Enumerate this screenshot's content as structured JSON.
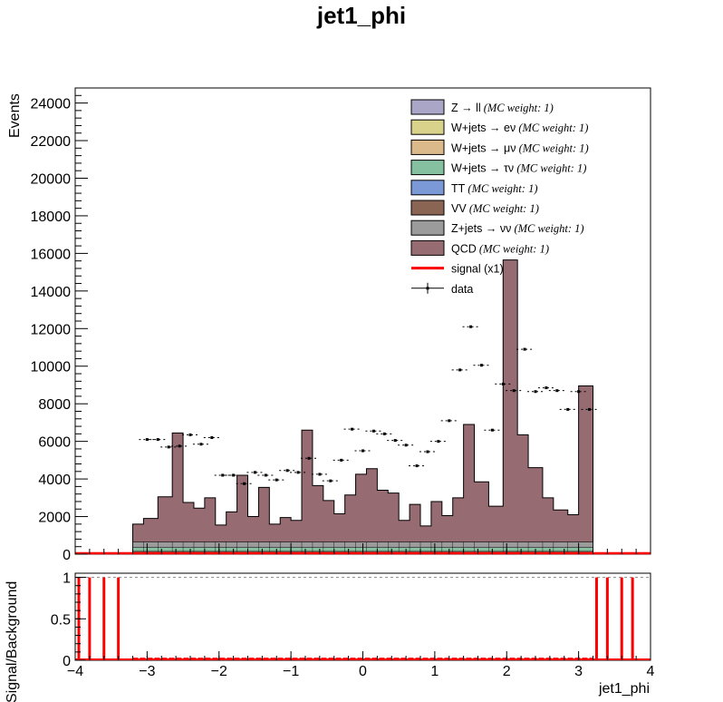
{
  "chart_data": [
    {
      "type": "bar",
      "title": "jet1_phi",
      "ylabel": "Events",
      "xlabel": "",
      "xlim": [
        -4,
        4
      ],
      "ylim": [
        0,
        24800
      ],
      "yticks": [
        "0",
        "2000",
        "4000",
        "6000",
        "8000",
        "10000",
        "12000",
        "14000",
        "16000",
        "18000",
        "20000",
        "22000",
        "24000"
      ],
      "bin_edges": [
        -3.2,
        -3.0,
        -2.8,
        -2.6,
        -2.4,
        -2.2,
        -2.0,
        -1.8,
        -1.6,
        -1.4,
        -1.2,
        -1.0,
        -0.8,
        -0.6,
        -0.4,
        -0.2,
        0.0,
        0.2,
        0.4,
        0.6,
        0.8,
        1.0,
        1.2,
        1.4,
        1.6,
        1.8,
        2.0,
        2.2,
        2.4,
        2.6,
        2.8,
        3.0,
        3.2
      ],
      "stack_total": [
        1600,
        1900,
        3050,
        6450,
        2750,
        2450,
        3000,
        1550,
        2250,
        4200,
        2000,
        3550,
        1600,
        1950,
        1800,
        6600,
        3650,
        2850,
        2150,
        3150,
        4250,
        4550,
        3400,
        3250,
        1800,
        2650,
        1500,
        2800,
        2050,
        3000,
        6900,
        3850,
        2550,
        15650,
        6350,
        4600,
        3000,
        2350,
        2100,
        8950
      ],
      "stack_x_edges": [
        -3.2,
        -3.05,
        -2.85,
        -2.65,
        -2.5,
        -2.35,
        -2.2,
        -2.05,
        -1.9,
        -1.75,
        -1.6,
        -1.45,
        -1.3,
        -1.15,
        -1.0,
        -0.85,
        -0.7,
        -0.55,
        -0.4,
        -0.25,
        -0.1,
        0.05,
        0.2,
        0.35,
        0.5,
        0.65,
        0.8,
        0.95,
        1.1,
        1.25,
        1.4,
        1.55,
        1.75,
        1.95,
        2.15,
        2.3,
        2.5,
        2.65,
        2.85,
        3.0,
        3.2
      ],
      "data_x": [
        -3.0,
        -2.85,
        -2.7,
        -2.55,
        -2.4,
        -2.25,
        -2.1,
        -1.95,
        -1.8,
        -1.65,
        -1.5,
        -1.35,
        -1.2,
        -1.05,
        -0.9,
        -0.75,
        -0.6,
        -0.45,
        -0.3,
        -0.15,
        0.0,
        0.15,
        0.3,
        0.45,
        0.6,
        0.75,
        0.9,
        1.05,
        1.2,
        1.35,
        1.5,
        1.65,
        1.8,
        1.95,
        2.1,
        2.25,
        2.4,
        2.55,
        2.7,
        2.85,
        3.0,
        3.15
      ],
      "data_y": [
        6100,
        6100,
        5700,
        5750,
        6350,
        5850,
        6200,
        4200,
        4200,
        3750,
        4350,
        4200,
        3950,
        4450,
        4350,
        5100,
        4250,
        3900,
        5000,
        6650,
        5500,
        6550,
        6400,
        6050,
        5800,
        4700,
        5450,
        6000,
        7100,
        9800,
        12100,
        10050,
        6600,
        9050,
        8700,
        10900,
        8650,
        8850,
        8700,
        7700,
        8650,
        7700
      ],
      "series": [
        {
          "name": "Z → ll",
          "weight": "(MC weight: 1)",
          "color": "#aaa6c8"
        },
        {
          "name": "W+jets → eν",
          "weight": "(MC weight: 1)",
          "color": "#d8d28a"
        },
        {
          "name": "W+jets → μν",
          "weight": "(MC weight: 1)",
          "color": "#dcb98a"
        },
        {
          "name": "W+jets → τν",
          "weight": "(MC weight: 1)",
          "color": "#85c0a0"
        },
        {
          "name": "TT",
          "weight": "(MC weight: 1)",
          "color": "#7b99d6"
        },
        {
          "name": "VV",
          "weight": "(MC weight: 1)",
          "color": "#8a6553"
        },
        {
          "name": "Z+jets → νν",
          "weight": "(MC weight: 1)",
          "color": "#9b9b9b"
        },
        {
          "name": "QCD",
          "weight": "(MC weight: 1)",
          "color": "#966b72"
        },
        {
          "name": "signal (x1)",
          "weight": "",
          "color": "#ff0000"
        },
        {
          "name": "data",
          "weight": "",
          "color": "#000000"
        }
      ]
    },
    {
      "type": "bar",
      "ylabel": "Signal/Background",
      "xlabel": "jet1_phi",
      "xlim": [
        -4,
        4
      ],
      "ylim": [
        0,
        1.05
      ],
      "xticks": [
        "−4",
        "−3",
        "−2",
        "−1",
        "0",
        "1",
        "2",
        "3",
        "4"
      ],
      "yticks": [
        "0",
        "0.5",
        "1"
      ],
      "full_ratio_x": [
        -3.95,
        -3.8,
        -3.6,
        -3.4,
        3.25,
        3.4,
        3.6,
        3.75
      ],
      "full_ratio_value": 1
    }
  ]
}
